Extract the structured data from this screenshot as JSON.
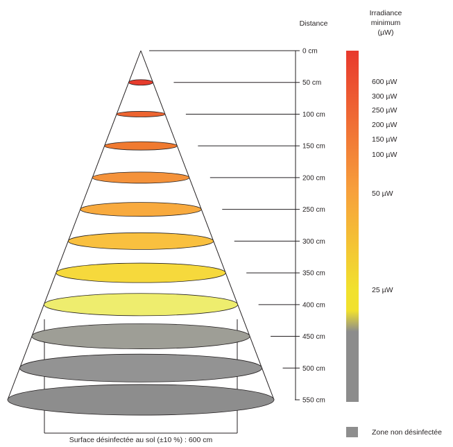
{
  "header": {
    "distance": "Distance",
    "irradiance_lines": [
      "Irradiance",
      "minimum",
      "(µW)"
    ]
  },
  "distances": [
    "0 cm",
    "50 cm",
    "100 cm",
    "150 cm",
    "200 cm",
    "250 cm",
    "300 cm",
    "350 cm",
    "400 cm",
    "450 cm",
    "500 cm",
    "550 cm"
  ],
  "irradiance_labels": [
    "600 µW",
    "300 µW",
    "250 µW",
    "200 µW",
    "150 µW",
    "100 µW",
    "50 µW",
    "25 µW"
  ],
  "ellipse_colors": [
    "#e63c2d",
    "#ed6430",
    "#f07a30",
    "#f4923a",
    "#f8aa3e",
    "#f9c03f",
    "#f6d93c",
    "#eeed6e",
    "#9e9e96",
    "#939393",
    "#8d8d8d"
  ],
  "legend": {
    "label": "Zone non désinfectée",
    "color": "#8e8e8e"
  },
  "footer": "Surface désinfectée au sol (±10 %) : 600 cm",
  "colorbar_colors": {
    "top": "#e8392d",
    "mid": "#f7a03c",
    "low": "#f1e12e",
    "bottom": "#8c8c8c"
  }
}
